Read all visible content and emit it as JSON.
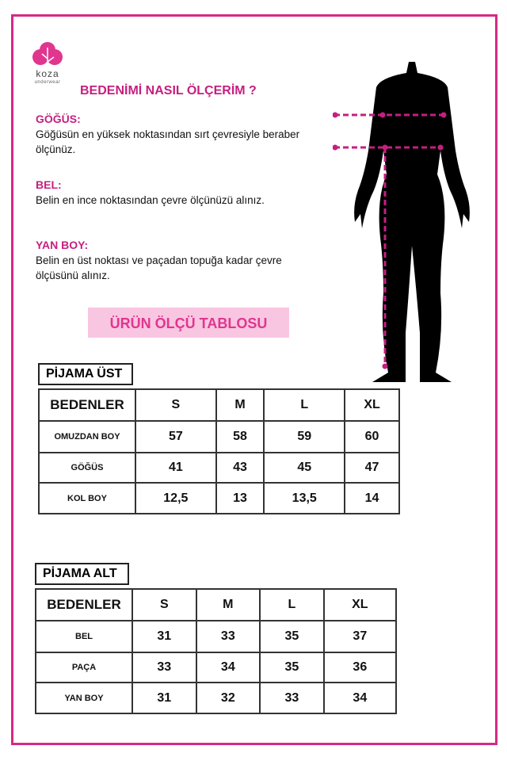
{
  "logo": {
    "name": "koza",
    "sub": "underwear"
  },
  "title": "BEDENİMİ NASIL ÖLÇERİM ?",
  "sections": [
    {
      "heading": "GÖĞÜS:",
      "text": "Göğüsün en yüksek noktasından sırt çevresiyle beraber ölçünüz."
    },
    {
      "heading": "BEL:",
      "text": "Belin en ince noktasından çevre ölçünüzü alınız."
    },
    {
      "heading": "YAN BOY:",
      "text": "Belin en üst noktası ve paçadan topuğa kadar çevre ölçüsünü alınız."
    }
  ],
  "banner": "ÜRÜN ÖLÇÜ TABLOSU",
  "tables": [
    {
      "title": "PİJAMA ÜST",
      "headers": [
        "BEDENLER",
        "S",
        "M",
        "L",
        "XL"
      ],
      "rows": [
        [
          "OMUZDAN BOY",
          "57",
          "58",
          "59",
          "60"
        ],
        [
          "GÖĞÜS",
          "41",
          "43",
          "45",
          "47"
        ],
        [
          "KOL BOY",
          "12,5",
          "13",
          "13,5",
          "14"
        ]
      ]
    },
    {
      "title": "PİJAMA ALT",
      "headers": [
        "BEDENLER",
        "S",
        "M",
        "L",
        "XL"
      ],
      "rows": [
        [
          "BEL",
          "31",
          "33",
          "35",
          "37"
        ],
        [
          "PAÇA",
          "33",
          "34",
          "35",
          "36"
        ],
        [
          "YAN BOY",
          "31",
          "32",
          "33",
          "34"
        ]
      ]
    }
  ],
  "colors": {
    "accent": "#c51f7f",
    "banner_bg": "#f9c6e2",
    "frame": "#d42a86"
  }
}
